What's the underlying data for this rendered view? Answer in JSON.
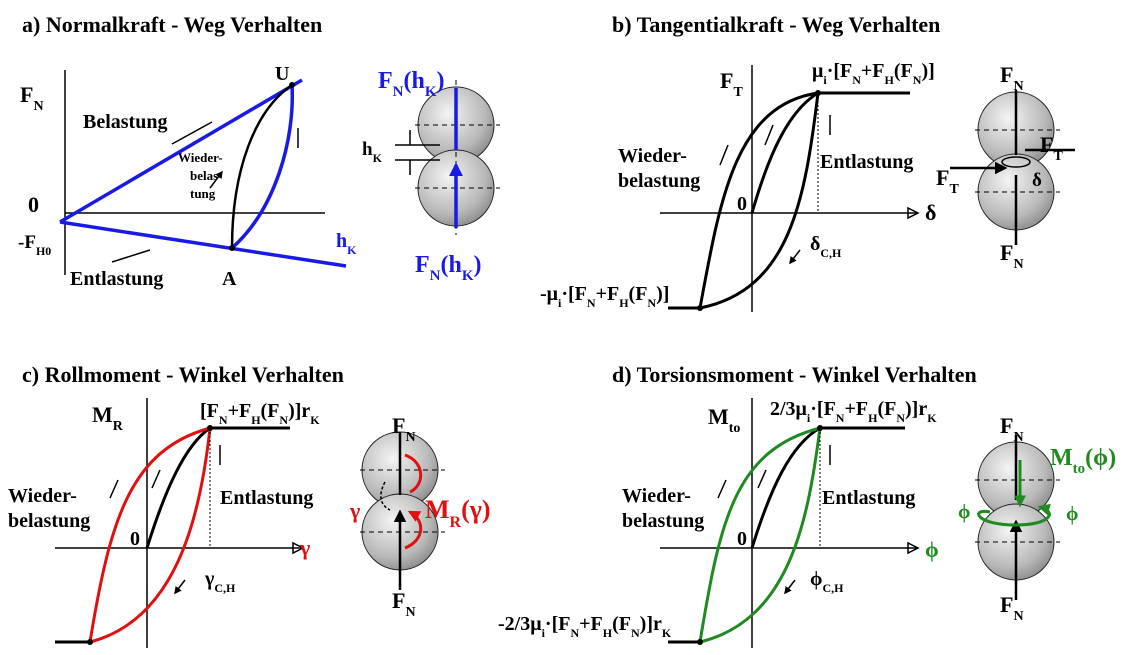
{
  "panels": [
    {
      "title": "a) Normalkraft - Weg Verhalten",
      "labels": [
        {
          "runs": [
            "F",
            {
              "sub": "N"
            }
          ]
        },
        {
          "runs": [
            "0"
          ]
        },
        {
          "runs": [
            "-F",
            {
              "sub": "H0"
            }
          ]
        },
        {
          "runs": [
            "U"
          ]
        },
        {
          "runs": [
            "Belastung"
          ]
        },
        {
          "runs": [
            "Wieder-"
          ]
        },
        {
          "runs": [
            "belas-"
          ]
        },
        {
          "runs": [
            "tung"
          ]
        },
        {
          "runs": [
            "Entlastung"
          ]
        },
        {
          "runs": [
            "A"
          ]
        },
        {
          "runs": [
            "h",
            {
              "sub": "K"
            }
          ]
        },
        {
          "runs": [
            "F",
            {
              "sub": "N"
            },
            "(h",
            {
              "sub": "K"
            },
            ")"
          ]
        },
        {
          "runs": [
            "h",
            {
              "sub": "K"
            }
          ]
        },
        {
          "runs": [
            "F",
            {
              "sub": "N"
            },
            "(h",
            {
              "sub": "K"
            },
            ")"
          ]
        }
      ]
    },
    {
      "title": "b) Tangentialkraft - Weg Verhalten",
      "labels": [
        {
          "runs": [
            "F",
            {
              "sub": "T"
            }
          ]
        },
        {
          "runs": [
            "μ",
            {
              "sub": "i"
            },
            "·[F",
            {
              "sub": "N"
            },
            "+F",
            {
              "sub": "H"
            },
            "(F",
            {
              "sub": "N"
            },
            ")]"
          ]
        },
        {
          "runs": [
            "Wieder-"
          ]
        },
        {
          "runs": [
            "belastung"
          ]
        },
        {
          "runs": [
            "Entlastung"
          ]
        },
        {
          "runs": [
            "0"
          ]
        },
        {
          "runs": [
            "δ"
          ]
        },
        {
          "runs": [
            "δ",
            {
              "sub": "C,H"
            }
          ]
        },
        {
          "runs": [
            "-μ",
            {
              "sub": "i"
            },
            "·[F",
            {
              "sub": "N"
            },
            "+F",
            {
              "sub": "H"
            },
            "(F",
            {
              "sub": "N"
            },
            ")]"
          ]
        },
        {
          "runs": [
            "F",
            {
              "sub": "N"
            }
          ]
        },
        {
          "runs": [
            "F",
            {
              "sub": "T"
            }
          ]
        },
        {
          "runs": [
            "F",
            {
              "sub": "T"
            }
          ]
        },
        {
          "runs": [
            "δ"
          ]
        },
        {
          "runs": [
            "F",
            {
              "sub": "N"
            }
          ]
        }
      ]
    },
    {
      "title": "c) Rollmoment - Winkel Verhalten",
      "labels": [
        {
          "runs": [
            "M",
            {
              "sub": "R"
            }
          ]
        },
        {
          "runs": [
            "[F",
            {
              "sub": "N"
            },
            "+F",
            {
              "sub": "H"
            },
            "(F",
            {
              "sub": "N"
            },
            ")]r",
            {
              "sub": "K"
            }
          ]
        },
        {
          "runs": [
            "Wieder-"
          ]
        },
        {
          "runs": [
            "belastung"
          ]
        },
        {
          "runs": [
            "Entlastung"
          ]
        },
        {
          "runs": [
            "0"
          ]
        },
        {
          "runs": [
            "γ"
          ]
        },
        {
          "runs": [
            "γ",
            {
              "sub": "C,H"
            }
          ]
        },
        {
          "runs": [
            "F",
            {
              "sub": "N"
            }
          ]
        },
        {
          "runs": [
            "γ"
          ]
        },
        {
          "runs": [
            "M",
            {
              "sub": "R"
            },
            "(γ)"
          ]
        },
        {
          "runs": [
            "F",
            {
              "sub": "N"
            }
          ]
        }
      ]
    },
    {
      "title": "d) Torsionsmoment - Winkel Verhalten",
      "labels": [
        {
          "runs": [
            "M",
            {
              "sub": "to"
            }
          ]
        },
        {
          "runs": [
            "2/3μ",
            {
              "sub": "i"
            },
            "·[F",
            {
              "sub": "N"
            },
            "+F",
            {
              "sub": "H"
            },
            "(F",
            {
              "sub": "N"
            },
            ")]r",
            {
              "sub": "K"
            }
          ]
        },
        {
          "runs": [
            "Wieder-"
          ]
        },
        {
          "runs": [
            "belastung"
          ]
        },
        {
          "runs": [
            "Entlastung"
          ]
        },
        {
          "runs": [
            "0"
          ]
        },
        {
          "runs": [
            "ϕ"
          ]
        },
        {
          "runs": [
            "ϕ",
            {
              "sub": "C,H"
            }
          ]
        },
        {
          "runs": [
            "-2/3μ",
            {
              "sub": "i"
            },
            "·[F",
            {
              "sub": "N"
            },
            "+F",
            {
              "sub": "H"
            },
            "(F",
            {
              "sub": "N"
            },
            ")]r",
            {
              "sub": "K"
            }
          ]
        },
        {
          "runs": [
            "F",
            {
              "sub": "N"
            }
          ]
        },
        {
          "runs": [
            "M",
            {
              "sub": "to"
            },
            "(ϕ)"
          ]
        },
        {
          "runs": [
            "ϕ"
          ]
        },
        {
          "runs": [
            "ϕ"
          ]
        },
        {
          "runs": [
            "F",
            {
              "sub": "N"
            }
          ]
        }
      ]
    }
  ]
}
